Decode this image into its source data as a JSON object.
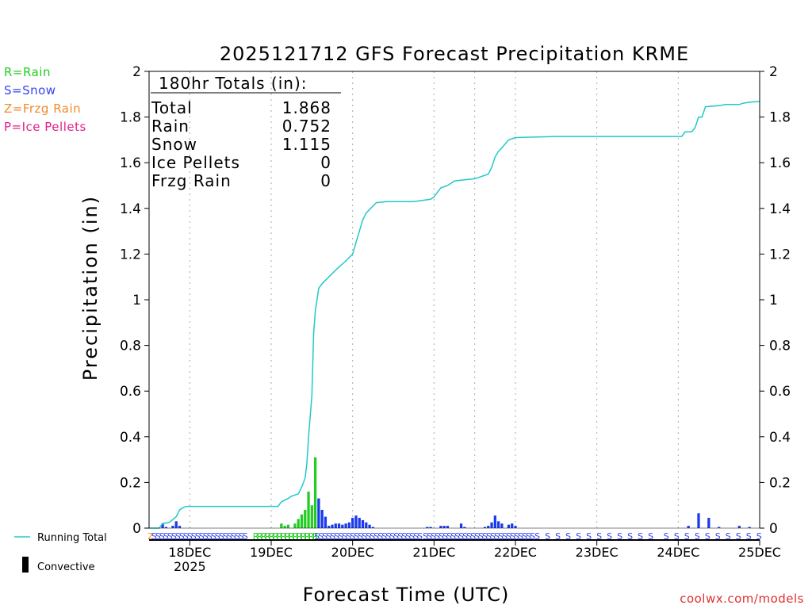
{
  "chart_data": {
    "type": "bar+line",
    "title": "2025121712 GFS Forecast Precipitation KRME",
    "xlabel": "Forecast Time (UTC)",
    "ylabel": "Precipitation (in)",
    "ylim": [
      0,
      2
    ],
    "y_ticks": [
      0,
      0.2,
      0.4,
      0.6,
      0.8,
      1,
      1.2,
      1.4,
      1.6,
      1.8,
      2
    ],
    "y_tick_labels": [
      "0",
      "0.2",
      "0.4",
      "0.6",
      "0.8",
      "1",
      "1.2",
      "1.4",
      "1.6",
      "1.8",
      "2"
    ],
    "xlim_hours": [
      0,
      180
    ],
    "x_ticks": [
      {
        "hour": 12,
        "label": "18DEC",
        "sublabel": "2025"
      },
      {
        "hour": 36,
        "label": "19DEC",
        "sublabel": ""
      },
      {
        "hour": 60,
        "label": "20DEC",
        "sublabel": ""
      },
      {
        "hour": 84,
        "label": "21DEC",
        "sublabel": ""
      },
      {
        "hour": 108,
        "label": "22DEC",
        "sublabel": ""
      },
      {
        "hour": 132,
        "label": "23DEC",
        "sublabel": ""
      },
      {
        "hour": 156,
        "label": "24DEC",
        "sublabel": ""
      },
      {
        "hour": 180,
        "label": "25DEC",
        "sublabel": ""
      }
    ],
    "grid_hours": [
      12,
      36,
      60,
      84,
      96,
      108,
      132,
      156
    ],
    "type_legend": [
      {
        "text": "R=Rain",
        "color": "#22cc22"
      },
      {
        "text": "S=Snow",
        "color": "#3344ee"
      },
      {
        "text": "Z=Frzg Rain",
        "color": "#f08a2a"
      },
      {
        "text": "P=Ice Pellets",
        "color": "#e0208a"
      }
    ],
    "line_legend": "Running Total",
    "bar_legend": "Convective",
    "totals": {
      "header": "180hr Totals (in):",
      "rows": [
        {
          "label": "Total",
          "value": "1.868"
        },
        {
          "label": "Rain",
          "value": "0.752"
        },
        {
          "label": "Snow",
          "value": "1.115"
        },
        {
          "label": "Ice Pellets",
          "value": "0"
        },
        {
          "label": "Frzg Rain",
          "value": "0"
        }
      ]
    },
    "colors": {
      "rain": "#22cc22",
      "snow": "#1a3af0",
      "line": "#22c8c8",
      "axis": "#000000",
      "grid": "#aaaaaa"
    },
    "bar_width_hours": 1,
    "bars": [
      {
        "hour": 4,
        "value": 0.02,
        "type": "snow"
      },
      {
        "hour": 5,
        "value": 0.005,
        "type": "snow"
      },
      {
        "hour": 7,
        "value": 0.01,
        "type": "snow"
      },
      {
        "hour": 8,
        "value": 0.03,
        "type": "snow"
      },
      {
        "hour": 9,
        "value": 0.01,
        "type": "snow"
      },
      {
        "hour": 39,
        "value": 0.02,
        "type": "rain"
      },
      {
        "hour": 40,
        "value": 0.01,
        "type": "rain"
      },
      {
        "hour": 41,
        "value": 0.015,
        "type": "rain"
      },
      {
        "hour": 43,
        "value": 0.02,
        "type": "rain"
      },
      {
        "hour": 44,
        "value": 0.04,
        "type": "rain"
      },
      {
        "hour": 45,
        "value": 0.06,
        "type": "rain"
      },
      {
        "hour": 46,
        "value": 0.08,
        "type": "rain"
      },
      {
        "hour": 47,
        "value": 0.16,
        "type": "rain"
      },
      {
        "hour": 48,
        "value": 0.1,
        "type": "rain"
      },
      {
        "hour": 49,
        "value": 0.31,
        "type": "rain"
      },
      {
        "hour": 50,
        "value": 0.13,
        "type": "snow"
      },
      {
        "hour": 51,
        "value": 0.08,
        "type": "snow"
      },
      {
        "hour": 52,
        "value": 0.05,
        "type": "snow"
      },
      {
        "hour": 53,
        "value": 0.01,
        "type": "snow"
      },
      {
        "hour": 54,
        "value": 0.015,
        "type": "snow"
      },
      {
        "hour": 55,
        "value": 0.02,
        "type": "snow"
      },
      {
        "hour": 56,
        "value": 0.02,
        "type": "snow"
      },
      {
        "hour": 57,
        "value": 0.015,
        "type": "snow"
      },
      {
        "hour": 58,
        "value": 0.02,
        "type": "snow"
      },
      {
        "hour": 59,
        "value": 0.025,
        "type": "snow"
      },
      {
        "hour": 60,
        "value": 0.045,
        "type": "snow"
      },
      {
        "hour": 61,
        "value": 0.055,
        "type": "snow"
      },
      {
        "hour": 62,
        "value": 0.045,
        "type": "snow"
      },
      {
        "hour": 63,
        "value": 0.035,
        "type": "snow"
      },
      {
        "hour": 64,
        "value": 0.025,
        "type": "snow"
      },
      {
        "hour": 65,
        "value": 0.015,
        "type": "snow"
      },
      {
        "hour": 66,
        "value": 0.005,
        "type": "snow"
      },
      {
        "hour": 82,
        "value": 0.005,
        "type": "snow"
      },
      {
        "hour": 83,
        "value": 0.005,
        "type": "snow"
      },
      {
        "hour": 86,
        "value": 0.01,
        "type": "snow"
      },
      {
        "hour": 87,
        "value": 0.01,
        "type": "snow"
      },
      {
        "hour": 88,
        "value": 0.01,
        "type": "snow"
      },
      {
        "hour": 92,
        "value": 0.02,
        "type": "snow"
      },
      {
        "hour": 93,
        "value": 0.005,
        "type": "snow"
      },
      {
        "hour": 99,
        "value": 0.005,
        "type": "snow"
      },
      {
        "hour": 100,
        "value": 0.01,
        "type": "snow"
      },
      {
        "hour": 101,
        "value": 0.025,
        "type": "snow"
      },
      {
        "hour": 102,
        "value": 0.055,
        "type": "snow"
      },
      {
        "hour": 103,
        "value": 0.03,
        "type": "snow"
      },
      {
        "hour": 104,
        "value": 0.02,
        "type": "snow"
      },
      {
        "hour": 106,
        "value": 0.015,
        "type": "snow"
      },
      {
        "hour": 107,
        "value": 0.02,
        "type": "snow"
      },
      {
        "hour": 108,
        "value": 0.01,
        "type": "snow"
      },
      {
        "hour": 159,
        "value": 0.01,
        "type": "snow"
      },
      {
        "hour": 162,
        "value": 0.065,
        "type": "snow"
      },
      {
        "hour": 165,
        "value": 0.045,
        "type": "snow"
      },
      {
        "hour": 168,
        "value": 0.005,
        "type": "snow"
      },
      {
        "hour": 174,
        "value": 0.01,
        "type": "snow"
      },
      {
        "hour": 177,
        "value": 0.005,
        "type": "snow"
      }
    ],
    "running_total": {
      "hours": [
        0,
        3,
        4,
        6,
        8,
        9,
        10,
        11,
        12,
        15,
        20,
        30,
        36,
        38,
        39,
        41,
        42,
        44,
        45,
        46,
        46.5,
        47,
        48,
        48.5,
        49,
        50,
        51,
        53,
        55,
        58,
        60,
        61,
        62,
        63,
        64,
        66,
        67,
        70,
        78,
        83,
        84,
        85,
        86,
        88,
        90,
        93,
        96,
        100,
        101,
        102,
        103,
        104,
        106,
        108,
        120,
        132,
        150,
        157,
        158,
        160,
        161,
        162,
        163,
        164,
        168,
        170,
        174,
        175,
        177,
        180
      ],
      "values": [
        0,
        0,
        0.02,
        0.025,
        0.05,
        0.08,
        0.09,
        0.095,
        0.095,
        0.095,
        0.095,
        0.095,
        0.095,
        0.095,
        0.115,
        0.13,
        0.14,
        0.15,
        0.18,
        0.22,
        0.28,
        0.4,
        0.58,
        0.85,
        0.95,
        1.05,
        1.07,
        1.1,
        1.13,
        1.17,
        1.2,
        1.25,
        1.3,
        1.35,
        1.38,
        1.41,
        1.425,
        1.43,
        1.43,
        1.44,
        1.45,
        1.47,
        1.49,
        1.5,
        1.52,
        1.525,
        1.53,
        1.55,
        1.58,
        1.625,
        1.65,
        1.665,
        1.7,
        1.71,
        1.715,
        1.715,
        1.715,
        1.715,
        1.735,
        1.735,
        1.755,
        1.8,
        1.8,
        1.845,
        1.85,
        1.855,
        1.855,
        1.86,
        1.865,
        1.868
      ]
    },
    "type_strip": [
      {
        "from_hour": 0,
        "to_hour": 1,
        "type": "Z"
      },
      {
        "from_hour": 1,
        "to_hour": 29,
        "type": "S"
      },
      {
        "from_hour": 31,
        "to_hour": 49,
        "type": "R"
      },
      {
        "from_hour": 49,
        "to_hour": 81,
        "type": "S"
      },
      {
        "from_hour": 81,
        "to_hour": 114,
        "type": "S"
      },
      {
        "from_hour": 114,
        "to_hour": 150,
        "type": "S"
      },
      {
        "from_hour": 152,
        "to_hour": 180,
        "type": "S"
      }
    ]
  },
  "credit": "coolwx.com/models"
}
